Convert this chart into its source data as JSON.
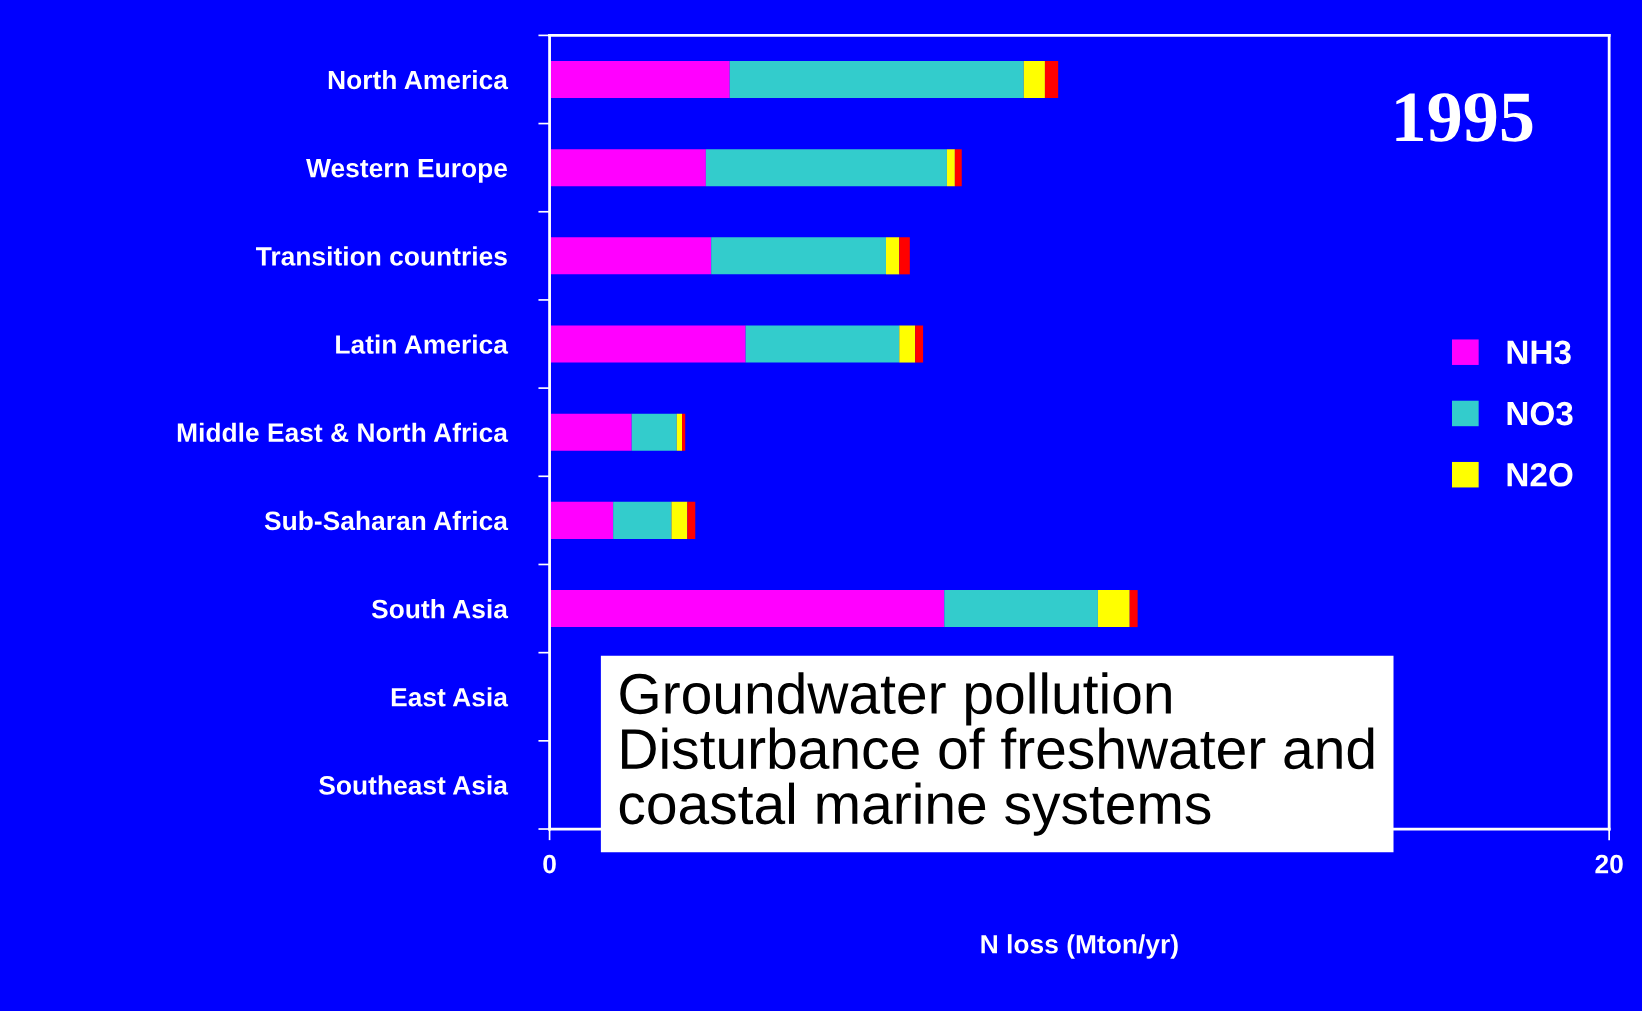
{
  "chart_data": {
    "type": "bar",
    "orientation": "horizontal",
    "stacked": true,
    "title": "1995",
    "xlabel": "N loss (Mton/yr)",
    "categories": [
      "North America",
      "Western Europe",
      "Transition countries",
      "Latin America",
      "Middle East & North Africa",
      "Sub-Saharan Africa",
      "South Asia",
      "East Asia",
      "Southeast Asia"
    ],
    "series": [
      {
        "name": "NH3",
        "color": "#ff00ff",
        "values": [
          3.4,
          2.95,
          3.05,
          3.7,
          1.55,
          1.2,
          7.45,
          null,
          null
        ]
      },
      {
        "name": "NO3",
        "color": "#33cccc",
        "values": [
          5.55,
          4.55,
          3.3,
          2.9,
          0.85,
          1.1,
          2.9,
          null,
          null
        ]
      },
      {
        "name": "N2O",
        "color": "#ffff00",
        "values": [
          0.4,
          0.15,
          0.25,
          0.3,
          0.1,
          0.3,
          0.6,
          null,
          null
        ]
      },
      {
        "color": "#ff0000",
        "values": [
          0.25,
          0.13,
          0.2,
          0.15,
          0.06,
          0.15,
          0.15,
          null,
          null
        ]
      }
    ],
    "xlim": [
      0,
      20
    ],
    "xticks": [
      0,
      20
    ],
    "grid": false,
    "legend": "right",
    "annotations": [
      "Groundwater pollution\nDisturbance of freshwater and\ncoastal marine systems"
    ]
  }
}
